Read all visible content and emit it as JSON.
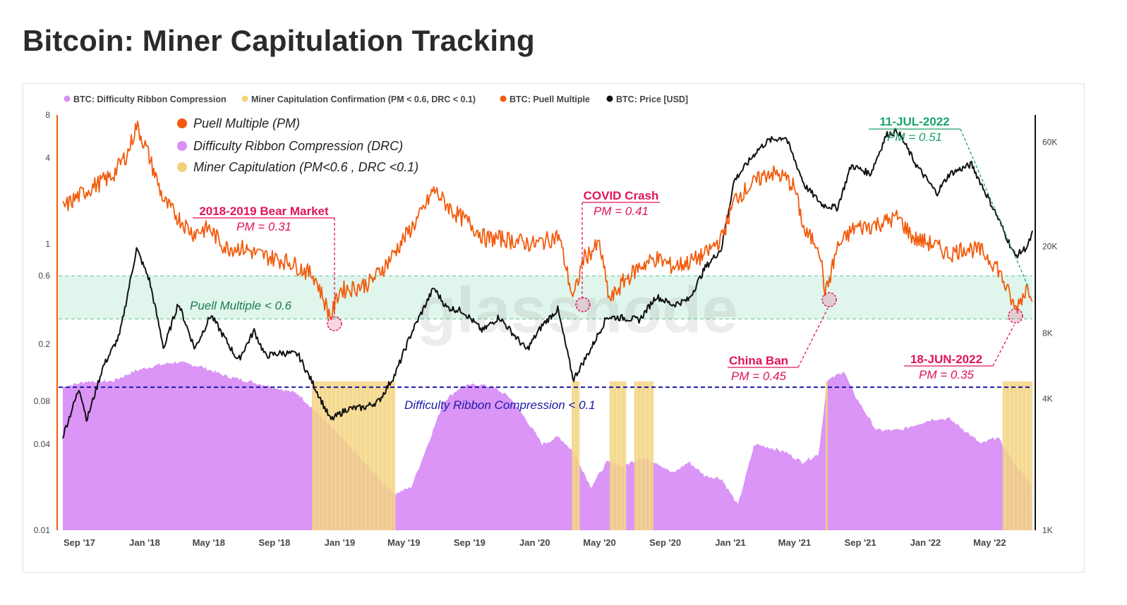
{
  "title": "Bitcoin: Miner Capitulation Tracking",
  "colors": {
    "drc": "#d88ff7",
    "capitulation": "#f3d27c",
    "puell": "#f25b0c",
    "price": "#111111",
    "band": "#d6f3e6",
    "band_border": "#6cc79b",
    "drc_line": "#1a1aa8",
    "ann_red": "#e0145a",
    "ann_green": "#1aa36b"
  },
  "legend": {
    "drc": "BTC: Difficulty Ribbon Compression",
    "capitulation": "Miner Capitulation Confirmation (PM < 0.6, DRC < 0.1)",
    "puell": "BTC: Puell Multiple",
    "price": "BTC: Price [USD]"
  },
  "overlay_legend": {
    "pm": "Puell Multiple (PM)",
    "drc": "Difficulty Ribbon Compression (DRC)",
    "cap": "Miner Capitulation (PM<0.6 , DRC <0.1)"
  },
  "watermark": "glassnode",
  "annotations": {
    "band_label": "Puell Multiple < 0.6",
    "drc_label": "Difficulty Ribbon Compression < 0.1",
    "bear": {
      "title": "2018-2019 Bear Market",
      "sub": "PM = 0.31"
    },
    "covid": {
      "title": "COVID Crash",
      "sub": "PM = 0.41"
    },
    "china": {
      "title": "China Ban",
      "sub": "PM = 0.45"
    },
    "june": {
      "title": "18-JUN-2022",
      "sub": "PM = 0.35"
    },
    "july": {
      "title": "11-JUL-2022",
      "sub": "PM = 0.51"
    }
  },
  "chart_data": {
    "type": "line",
    "x_range": [
      "2017-08-01",
      "2022-07-20"
    ],
    "x_ticks": [
      "Sep '17",
      "Jan '18",
      "May '18",
      "Sep '18",
      "Jan '19",
      "May '19",
      "Sep '19",
      "Jan '20",
      "May '20",
      "Sep '20",
      "Jan '21",
      "May '21",
      "Sep '21",
      "Jan '22",
      "May '22"
    ],
    "y_left": {
      "scale": "log",
      "range": [
        0.01,
        8
      ],
      "ticks": [
        "8",
        "4",
        "1",
        "0.6",
        "0.2",
        "0.08",
        "0.04",
        "0.01"
      ]
    },
    "y_right": {
      "scale": "log",
      "range": [
        1000,
        80000
      ],
      "ticks": [
        "60K",
        "20K",
        "8K",
        "4K",
        "1K"
      ]
    },
    "thresholds": {
      "puell_band": [
        0.3,
        0.6
      ],
      "drc": 0.1
    },
    "puell_multiple": [
      [
        "2017-08-01",
        1.8
      ],
      [
        "2017-09-01",
        2.2
      ],
      [
        "2017-10-01",
        2.6
      ],
      [
        "2017-11-01",
        3.0
      ],
      [
        "2017-12-01",
        4.4
      ],
      [
        "2017-12-17",
        6.8
      ],
      [
        "2018-01-05",
        4.6
      ],
      [
        "2018-02-06",
        2.0
      ],
      [
        "2018-03-01",
        1.6
      ],
      [
        "2018-04-01",
        1.2
      ],
      [
        "2018-05-01",
        1.3
      ],
      [
        "2018-06-01",
        0.95
      ],
      [
        "2018-07-01",
        0.95
      ],
      [
        "2018-08-01",
        0.85
      ],
      [
        "2018-09-01",
        0.8
      ],
      [
        "2018-10-01",
        0.75
      ],
      [
        "2018-11-15",
        0.6
      ],
      [
        "2018-12-15",
        0.31
      ],
      [
        "2019-01-01",
        0.48
      ],
      [
        "2019-02-01",
        0.5
      ],
      [
        "2019-03-01",
        0.55
      ],
      [
        "2019-04-01",
        0.75
      ],
      [
        "2019-05-01",
        1.1
      ],
      [
        "2019-06-01",
        1.6
      ],
      [
        "2019-06-26",
        2.4
      ],
      [
        "2019-08-01",
        1.7
      ],
      [
        "2019-09-01",
        1.4
      ],
      [
        "2019-10-01",
        1.1
      ],
      [
        "2019-11-01",
        1.1
      ],
      [
        "2019-12-01",
        1.05
      ],
      [
        "2020-01-01",
        1.0
      ],
      [
        "2020-02-15",
        1.15
      ],
      [
        "2020-03-13",
        0.41
      ],
      [
        "2020-04-01",
        0.8
      ],
      [
        "2020-05-01",
        1.0
      ],
      [
        "2020-05-20",
        0.4
      ],
      [
        "2020-06-15",
        0.55
      ],
      [
        "2020-07-15",
        0.7
      ],
      [
        "2020-08-15",
        0.8
      ],
      [
        "2020-09-15",
        0.7
      ],
      [
        "2020-10-15",
        0.75
      ],
      [
        "2020-11-15",
        0.85
      ],
      [
        "2020-12-15",
        1.1
      ],
      [
        "2021-01-10",
        2.1
      ],
      [
        "2021-02-20",
        2.8
      ],
      [
        "2021-03-15",
        3.2
      ],
      [
        "2021-04-15",
        2.9
      ],
      [
        "2021-05-01",
        2.5
      ],
      [
        "2021-05-20",
        1.2
      ],
      [
        "2021-06-15",
        1.0
      ],
      [
        "2021-06-28",
        0.45
      ],
      [
        "2021-07-20",
        0.95
      ],
      [
        "2021-08-20",
        1.3
      ],
      [
        "2021-09-20",
        1.35
      ],
      [
        "2021-10-20",
        1.45
      ],
      [
        "2021-11-10",
        1.55
      ],
      [
        "2021-12-10",
        1.1
      ],
      [
        "2022-01-15",
        1.0
      ],
      [
        "2022-02-15",
        0.85
      ],
      [
        "2022-03-15",
        0.95
      ],
      [
        "2022-04-15",
        0.9
      ],
      [
        "2022-05-15",
        0.7
      ],
      [
        "2022-06-18",
        0.35
      ],
      [
        "2022-07-11",
        0.51
      ],
      [
        "2022-07-20",
        0.45
      ]
    ],
    "price_usd": [
      [
        "2017-08-01",
        2700
      ],
      [
        "2017-09-01",
        4500
      ],
      [
        "2017-09-15",
        3200
      ],
      [
        "2017-10-15",
        5600
      ],
      [
        "2017-11-15",
        7800
      ],
      [
        "2017-12-17",
        19500
      ],
      [
        "2018-01-10",
        14000
      ],
      [
        "2018-02-06",
        6800
      ],
      [
        "2018-03-05",
        11000
      ],
      [
        "2018-04-05",
        6800
      ],
      [
        "2018-05-05",
        9700
      ],
      [
        "2018-06-25",
        6000
      ],
      [
        "2018-07-25",
        8200
      ],
      [
        "2018-08-15",
        6300
      ],
      [
        "2018-09-15",
        6500
      ],
      [
        "2018-10-15",
        6400
      ],
      [
        "2018-11-20",
        4300
      ],
      [
        "2018-12-15",
        3200
      ],
      [
        "2019-01-15",
        3600
      ],
      [
        "2019-02-15",
        3650
      ],
      [
        "2019-03-15",
        3900
      ],
      [
        "2019-04-15",
        5200
      ],
      [
        "2019-05-15",
        8000
      ],
      [
        "2019-06-26",
        12900
      ],
      [
        "2019-07-20",
        10500
      ],
      [
        "2019-08-20",
        10100
      ],
      [
        "2019-09-25",
        8200
      ],
      [
        "2019-10-26",
        9500
      ],
      [
        "2019-12-17",
        6700
      ],
      [
        "2020-01-15",
        8700
      ],
      [
        "2020-02-13",
        10300
      ],
      [
        "2020-03-13",
        4900
      ],
      [
        "2020-04-15",
        6800
      ],
      [
        "2020-05-15",
        9500
      ],
      [
        "2020-06-15",
        9400
      ],
      [
        "2020-07-15",
        9200
      ],
      [
        "2020-08-15",
        11800
      ],
      [
        "2020-09-15",
        10800
      ],
      [
        "2020-10-15",
        11400
      ],
      [
        "2020-11-15",
        16000
      ],
      [
        "2020-12-15",
        19500
      ],
      [
        "2021-01-08",
        40000
      ],
      [
        "2021-02-20",
        55000
      ],
      [
        "2021-03-13",
        61000
      ],
      [
        "2021-04-14",
        63500
      ],
      [
        "2021-05-20",
        38000
      ],
      [
        "2021-06-22",
        31000
      ],
      [
        "2021-07-20",
        30000
      ],
      [
        "2021-08-15",
        47000
      ],
      [
        "2021-09-20",
        43000
      ],
      [
        "2021-10-20",
        65000
      ],
      [
        "2021-11-10",
        67500
      ],
      [
        "2021-12-15",
        47000
      ],
      [
        "2022-01-22",
        35000
      ],
      [
        "2022-02-15",
        43000
      ],
      [
        "2022-03-28",
        47500
      ],
      [
        "2022-05-12",
        28500
      ],
      [
        "2022-06-18",
        18000
      ],
      [
        "2022-07-11",
        20000
      ],
      [
        "2022-07-20",
        23000
      ]
    ],
    "difficulty_ribbon_compression": [
      [
        "2017-08-01",
        0.1
      ],
      [
        "2017-09-15",
        0.11
      ],
      [
        "2017-11-01",
        0.11
      ],
      [
        "2017-12-15",
        0.13
      ],
      [
        "2018-01-15",
        0.14
      ],
      [
        "2018-03-01",
        0.15
      ],
      [
        "2018-04-15",
        0.14
      ],
      [
        "2018-06-01",
        0.12
      ],
      [
        "2018-07-15",
        0.11
      ],
      [
        "2018-09-01",
        0.1
      ],
      [
        "2018-10-15",
        0.09
      ],
      [
        "2018-12-01",
        0.06
      ],
      [
        "2019-01-15",
        0.04
      ],
      [
        "2019-02-15",
        0.03
      ],
      [
        "2019-03-15",
        0.023
      ],
      [
        "2019-04-15",
        0.018
      ],
      [
        "2019-05-15",
        0.02
      ],
      [
        "2019-06-15",
        0.04
      ],
      [
        "2019-07-15",
        0.08
      ],
      [
        "2019-08-15",
        0.1
      ],
      [
        "2019-09-15",
        0.105
      ],
      [
        "2019-10-15",
        0.1
      ],
      [
        "2019-11-15",
        0.085
      ],
      [
        "2019-12-15",
        0.06
      ],
      [
        "2020-01-15",
        0.04
      ],
      [
        "2020-02-15",
        0.045
      ],
      [
        "2020-03-15",
        0.035
      ],
      [
        "2020-04-15",
        0.02
      ],
      [
        "2020-05-15",
        0.03
      ],
      [
        "2020-06-15",
        0.028
      ],
      [
        "2020-07-15",
        0.032
      ],
      [
        "2020-08-15",
        0.03
      ],
      [
        "2020-09-15",
        0.025
      ],
      [
        "2020-10-15",
        0.03
      ],
      [
        "2020-11-15",
        0.024
      ],
      [
        "2020-12-15",
        0.023
      ],
      [
        "2021-01-15",
        0.015
      ],
      [
        "2021-02-15",
        0.04
      ],
      [
        "2021-03-15",
        0.038
      ],
      [
        "2021-04-15",
        0.035
      ],
      [
        "2021-05-15",
        0.03
      ],
      [
        "2021-06-15",
        0.034
      ],
      [
        "2021-07-01",
        0.11
      ],
      [
        "2021-08-01",
        0.13
      ],
      [
        "2021-08-20",
        0.09
      ],
      [
        "2021-10-01",
        0.05
      ],
      [
        "2021-11-15",
        0.05
      ],
      [
        "2021-12-15",
        0.055
      ],
      [
        "2022-01-15",
        0.06
      ],
      [
        "2022-02-15",
        0.06
      ],
      [
        "2022-03-15",
        0.05
      ],
      [
        "2022-04-15",
        0.04
      ],
      [
        "2022-05-15",
        0.045
      ],
      [
        "2022-06-15",
        0.03
      ],
      [
        "2022-07-20",
        0.02
      ]
    ],
    "capitulation_periods": [
      [
        "2018-11-10",
        "2019-04-15"
      ],
      [
        "2020-03-10",
        "2020-03-25"
      ],
      [
        "2020-05-20",
        "2020-06-20"
      ],
      [
        "2020-07-05",
        "2020-08-10"
      ],
      [
        "2021-06-28",
        "2021-07-02"
      ],
      [
        "2022-05-25",
        "2022-07-20"
      ]
    ]
  }
}
